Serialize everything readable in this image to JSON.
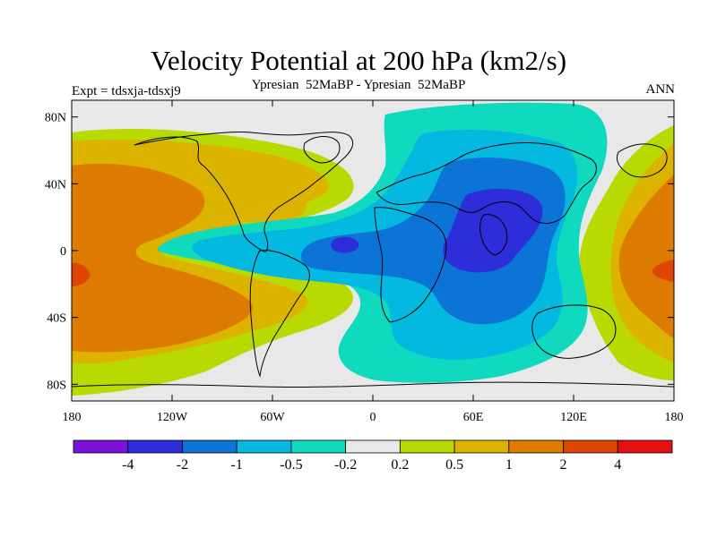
{
  "title": "Velocity Potential at 200 hPa (km2/s)",
  "subtitle": "Ypresian  52MaBP - Ypresian  52MaBP",
  "left_label": "Expt = tdsxja-tdsxj9",
  "right_label": "ANN",
  "y_ticks": [
    {
      "lat": 80,
      "label": "80N"
    },
    {
      "lat": 40,
      "label": "40N"
    },
    {
      "lat": 0,
      "label": "0"
    },
    {
      "lat": -40,
      "label": "40S"
    },
    {
      "lat": -80,
      "label": "80S"
    }
  ],
  "x_ticks": [
    {
      "lon": -180,
      "label": "180"
    },
    {
      "lon": -120,
      "label": "120W"
    },
    {
      "lon": -60,
      "label": "60W"
    },
    {
      "lon": 0,
      "label": "0"
    },
    {
      "lon": 60,
      "label": "60E"
    },
    {
      "lon": 120,
      "label": "120E"
    },
    {
      "lon": 180,
      "label": "180"
    }
  ],
  "colorbar": {
    "colors": [
      "#7b12db",
      "#2d2dd9",
      "#0b74d6",
      "#03b9df",
      "#0fd9be",
      "#e8e8e8",
      "#b8da00",
      "#dcb400",
      "#dd7a00",
      "#dd4500",
      "#e61010"
    ],
    "levels": [
      "-4",
      "-2",
      "-1",
      "-0.5",
      "-0.2",
      "0.2",
      "0.5",
      "1",
      "2",
      "4"
    ]
  },
  "colors": {
    "background": "#e8e8e8"
  }
}
